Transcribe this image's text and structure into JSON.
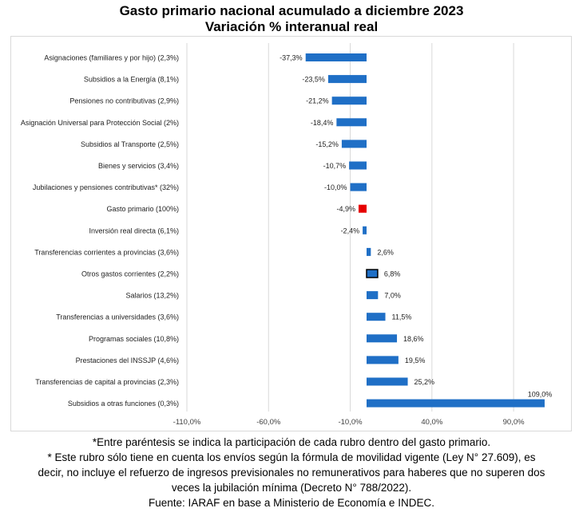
{
  "title_line1": "Gasto primario nacional acumulado a diciembre 2023",
  "title_line2": "Variación % interanual real",
  "chart_data": {
    "type": "bar",
    "orientation": "horizontal",
    "title": "Gasto primario nacional acumulado a diciembre 2023",
    "subtitle": "Variación % interanual real",
    "xlabel": "",
    "ylabel": "",
    "xlim": [
      -110,
      110
    ],
    "x_ticks": [
      -110,
      -60,
      -10,
      40,
      90
    ],
    "x_tick_labels": [
      "-110,0%",
      "-60,0%",
      "-10,0%",
      "40,0%",
      "90,0%"
    ],
    "grid": "vertical",
    "categories": [
      "Asignaciones (familiares y por hijo) (2,3%)",
      "Subsidios a la Energía (8,1%)",
      "Pensiones no contributivas (2,9%)",
      "Asignación Universal para Protección Social (2%)",
      "Subsidios al Transporte (2,5%)",
      "Bienes y servicios (3,4%)",
      "Jubilaciones y pensiones contributivas* (32%)",
      "Gasto primario (100%)",
      "Inversión real directa (6,1%)",
      "Transferencias corrientes a provincias (3,6%)",
      "Otros gastos corrientes (2,2%)",
      "Salarios (13,2%)",
      "Transferencias a universidades (3,6%)",
      "Programas sociales (10,8%)",
      "Prestaciones del INSSJP (4,6%)",
      "Transferencias de capital a provincias (2,3%)",
      "Subsidios a otras funciones (0,3%)"
    ],
    "values": [
      -37.3,
      -23.5,
      -21.2,
      -18.4,
      -15.2,
      -10.7,
      -10.0,
      -4.9,
      -2.4,
      2.6,
      6.8,
      7.0,
      11.5,
      18.6,
      19.5,
      25.2,
      109.0
    ],
    "value_labels": [
      "-37,3%",
      "-23,5%",
      "-21,2%",
      "-18,4%",
      "-15,2%",
      "-10,7%",
      "-10,0%",
      "-4,9%",
      "-2,4%",
      "2,6%",
      "6,8%",
      "7,0%",
      "11,5%",
      "18,6%",
      "19,5%",
      "25,2%",
      "109,0%"
    ],
    "colors": {
      "default": "#1f6fc6",
      "highlight": "#e60000",
      "highlight_category": "Gasto primario (100%)",
      "outlined_category": "Otros gastos corrientes (2,2%)",
      "outline": "#000000",
      "grid": "#d9d9d9"
    }
  },
  "notes": {
    "line1": "*Entre paréntesis se indica la participación de cada rubro dentro del gasto primario.",
    "line2": "* Este rubro sólo tiene en cuenta los envíos según la fórmula de movilidad vigente (Ley N° 27.609), es",
    "line3": "decir, no incluye el refuerzo de ingresos previsionales no remunerativos para haberes que no superen dos",
    "line4": "veces la jubilación mínima (Decreto N° 788/2022).",
    "line5": "Fuente: IARAF en base a Ministerio de Economía e INDEC."
  }
}
